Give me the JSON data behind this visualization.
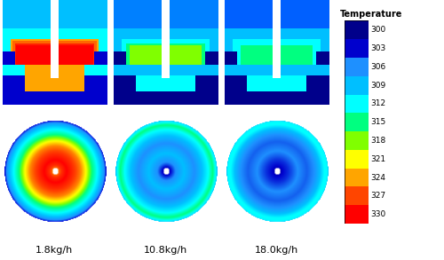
{
  "labels": [
    "1.8kg/h",
    "10.8kg/h",
    "18.0kg/h"
  ],
  "temp_levels": [
    300,
    303,
    306,
    309,
    312,
    315,
    318,
    321,
    324,
    327,
    330
  ],
  "colorbar_colors": [
    "#00008B",
    "#0000CD",
    "#1E90FF",
    "#00BFFF",
    "#00FFFF",
    "#00FF80",
    "#80FF00",
    "#FFFF00",
    "#FFA500",
    "#FF4500",
    "#FF0000"
  ],
  "label_fontsize": 8,
  "colorbar_title": "Temperature",
  "colorbar_title_fontsize": 7,
  "colorbar_label_fontsize": 6.5,
  "panel1_disk_profile": [
    0.0,
    0.05,
    0.12,
    0.22,
    0.35,
    0.5,
    0.62,
    0.72,
    0.82,
    0.9,
    0.96,
    1.0
  ],
  "panel1_disk_temps": [
    300,
    325,
    328,
    330,
    328,
    325,
    320,
    315,
    312,
    309,
    306,
    303
  ],
  "panel2_disk_profile": [
    0.0,
    0.08,
    0.18,
    0.35,
    0.55,
    0.7,
    0.82,
    0.91,
    0.97,
    1.0
  ],
  "panel2_disk_temps": [
    300,
    303,
    306,
    309,
    306,
    309,
    312,
    315,
    312,
    309
  ],
  "panel3_disk_profile": [
    0.0,
    0.1,
    0.22,
    0.4,
    0.58,
    0.72,
    0.84,
    0.92,
    0.98,
    1.0
  ],
  "panel3_disk_temps": [
    300,
    303,
    304,
    306,
    305,
    306,
    309,
    312,
    312,
    309
  ]
}
